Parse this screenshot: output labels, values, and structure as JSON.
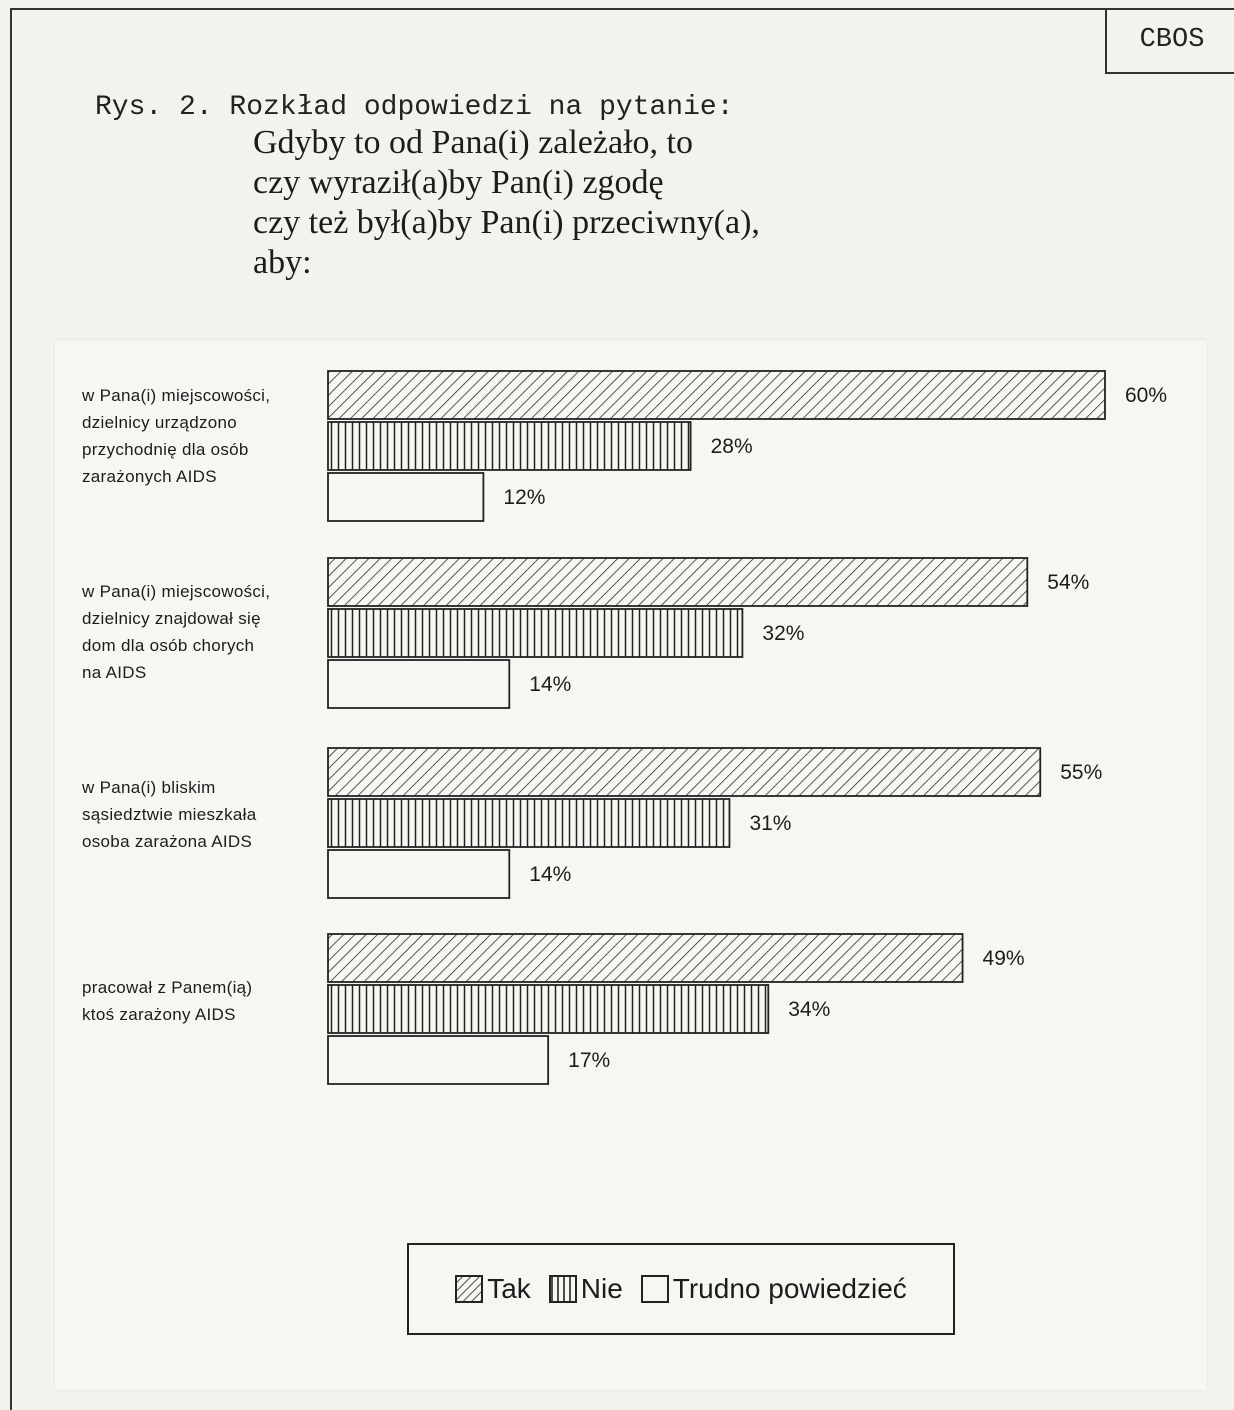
{
  "badge": "CBOS",
  "caption": "Rys. 2. Rozkład odpowiedzi na pytanie:",
  "question_lines": [
    "Gdyby to od Pana(i) zależało, to",
    "czy wyraził(a)by Pan(i) zgodę",
    "czy też był(a)by Pan(i) przeciwny(a),",
    "aby:"
  ],
  "chart_data": {
    "type": "bar",
    "orientation": "horizontal",
    "categories": [
      "w Pana(i) miejscowości,\ndzielnicy urządzono\nprzychodnię dla osób\nzarażonych AIDS",
      "w Pana(i) miejscowości,\ndzielnicy znajdował się\ndom dla osób chorych\nna AIDS",
      "w Pana(i) bliskim\nsąsiedztwie mieszkała\nosoba zarażona AIDS",
      "pracował z Panem(ią)\nktoś zarażony AIDS"
    ],
    "series": [
      {
        "name": "Tak",
        "values": [
          60,
          54,
          55,
          49
        ],
        "pattern": "diagonal-hatch"
      },
      {
        "name": "Nie",
        "values": [
          28,
          32,
          31,
          34
        ],
        "pattern": "vertical-hatch"
      },
      {
        "name": "Trudno powiedzieć",
        "values": [
          12,
          14,
          14,
          17
        ],
        "pattern": "empty"
      }
    ],
    "value_suffix": "%",
    "xlim": [
      0,
      60
    ],
    "grid": false,
    "legend_position": "bottom-center"
  },
  "colors": {
    "ink": "#222222",
    "paper": "#f7f6f2"
  }
}
